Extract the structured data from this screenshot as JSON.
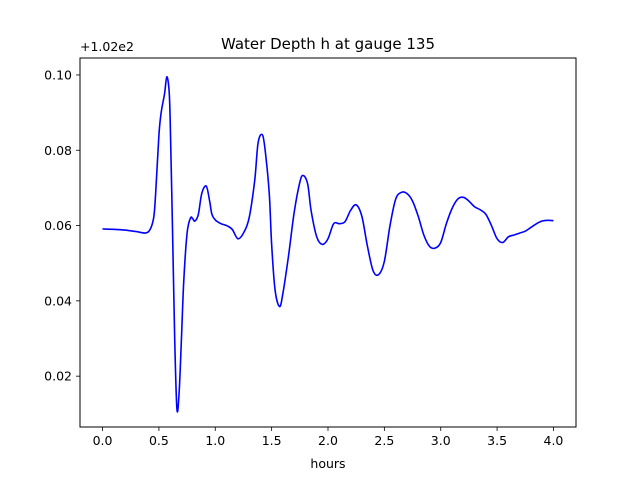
{
  "chart_data": {
    "type": "line",
    "title": "Water Depth h at gauge 135",
    "xlabel": "hours",
    "ylabel": "",
    "offset_label": "+1.02e2",
    "xlim": [
      -0.2,
      4.2
    ],
    "ylim": [
      0.0065,
      0.1045
    ],
    "xticks": [
      0.0,
      0.5,
      1.0,
      1.5,
      2.0,
      2.5,
      3.0,
      3.5,
      4.0
    ],
    "xtick_labels": [
      "0.0",
      "0.5",
      "1.0",
      "1.5",
      "2.0",
      "2.5",
      "3.0",
      "3.5",
      "4.0"
    ],
    "yticks": [
      0.02,
      0.04,
      0.06,
      0.08,
      0.1
    ],
    "ytick_labels": [
      "0.02",
      "0.04",
      "0.06",
      "0.08",
      "0.10"
    ],
    "grid": false,
    "series": [
      {
        "color": "#0000ff",
        "x": [
          0.0,
          0.1,
          0.2,
          0.3,
          0.4,
          0.45,
          0.47,
          0.5,
          0.52,
          0.55,
          0.57,
          0.59,
          0.6,
          0.62,
          0.64,
          0.66,
          0.68,
          0.7,
          0.72,
          0.75,
          0.78,
          0.8,
          0.82,
          0.85,
          0.88,
          0.92,
          0.95,
          0.97,
          1.0,
          1.05,
          1.1,
          1.15,
          1.2,
          1.25,
          1.3,
          1.35,
          1.38,
          1.42,
          1.45,
          1.48,
          1.5,
          1.53,
          1.57,
          1.6,
          1.65,
          1.7,
          1.75,
          1.78,
          1.82,
          1.85,
          1.9,
          1.95,
          2.0,
          2.05,
          2.1,
          2.15,
          2.2,
          2.25,
          2.3,
          2.35,
          2.4,
          2.45,
          2.5,
          2.55,
          2.6,
          2.65,
          2.7,
          2.75,
          2.8,
          2.85,
          2.9,
          2.95,
          3.0,
          3.05,
          3.1,
          3.15,
          3.2,
          3.25,
          3.3,
          3.35,
          3.4,
          3.45,
          3.5,
          3.55,
          3.6,
          3.65,
          3.7,
          3.75,
          3.8,
          3.85,
          3.9,
          3.95,
          4.0
        ],
        "y": [
          0.0591,
          0.059,
          0.0588,
          0.0584,
          0.0582,
          0.0615,
          0.068,
          0.084,
          0.09,
          0.095,
          0.0995,
          0.096,
          0.088,
          0.06,
          0.03,
          0.0112,
          0.016,
          0.03,
          0.045,
          0.058,
          0.062,
          0.0618,
          0.0612,
          0.063,
          0.0685,
          0.0705,
          0.0665,
          0.063,
          0.0615,
          0.0605,
          0.06,
          0.059,
          0.0565,
          0.058,
          0.062,
          0.072,
          0.082,
          0.084,
          0.078,
          0.068,
          0.055,
          0.043,
          0.0385,
          0.042,
          0.052,
          0.0635,
          0.0715,
          0.0733,
          0.071,
          0.064,
          0.057,
          0.055,
          0.0565,
          0.0605,
          0.0605,
          0.061,
          0.064,
          0.0655,
          0.0625,
          0.0545,
          0.048,
          0.047,
          0.0505,
          0.06,
          0.067,
          0.0688,
          0.0685,
          0.0665,
          0.0625,
          0.0575,
          0.0545,
          0.054,
          0.0555,
          0.0605,
          0.0645,
          0.067,
          0.0675,
          0.0665,
          0.065,
          0.0642,
          0.063,
          0.06,
          0.0565,
          0.0555,
          0.057,
          0.0575,
          0.058,
          0.0585,
          0.0595,
          0.0605,
          0.0612,
          0.0614,
          0.0613
        ]
      }
    ]
  }
}
